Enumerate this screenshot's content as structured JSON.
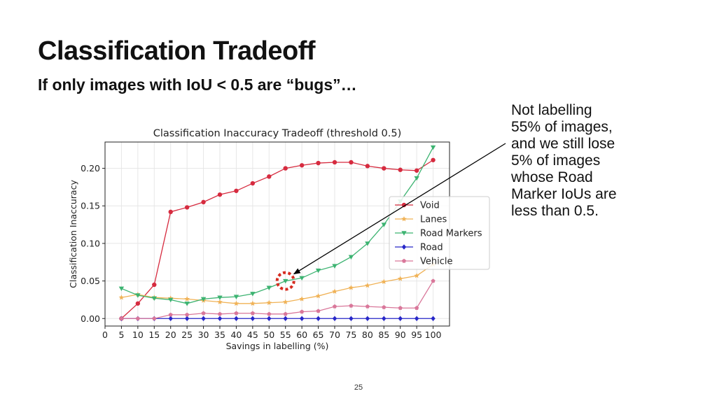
{
  "slide": {
    "title": "Classification Tradeoff",
    "subtitle": "If only images with IoU < 0.5 are “bugs”…",
    "annotation_lines": [
      "Not labelling",
      "55% of images,",
      "and we still lose",
      "5% of images",
      "whose Road",
      "Marker IoUs are",
      "less than 0.5."
    ],
    "page_number": "25"
  },
  "chart_data": {
    "type": "line",
    "title": "Classification Inaccuracy Tradeoff (threshold 0.5)",
    "xlabel": "Savings in labelling (%)",
    "ylabel": "Classification Inaccuracy",
    "xlim": [
      0,
      105
    ],
    "ylim": [
      -0.01,
      0.235
    ],
    "x_ticks": [
      0,
      5,
      10,
      15,
      20,
      25,
      30,
      35,
      40,
      45,
      50,
      55,
      60,
      65,
      70,
      75,
      80,
      85,
      90,
      95,
      100
    ],
    "x_tick_labels": [
      "0",
      "5",
      "10",
      "15",
      "20",
      "25",
      "30",
      "35",
      "40",
      "45",
      "50",
      "55",
      "60",
      "65",
      "70",
      "75",
      "80",
      "85",
      "90",
      "95",
      "100"
    ],
    "y_ticks": [
      0.0,
      0.05,
      0.1,
      0.15,
      0.2
    ],
    "y_tick_labels": [
      "0.00",
      "0.05",
      "0.10",
      "0.15",
      "0.20"
    ],
    "grid": true,
    "legend_position": "center-right",
    "x": [
      5,
      10,
      15,
      20,
      25,
      30,
      35,
      40,
      45,
      50,
      55,
      60,
      65,
      70,
      75,
      80,
      85,
      90,
      95,
      100
    ],
    "series": [
      {
        "name": "Void",
        "color": "#d62b3f",
        "marker": "circle",
        "values": [
          0.0,
          0.02,
          0.045,
          0.142,
          0.148,
          0.155,
          0.165,
          0.17,
          0.18,
          0.189,
          0.2,
          0.204,
          0.207,
          0.208,
          0.208,
          0.203,
          0.2,
          0.198,
          0.197,
          0.211
        ]
      },
      {
        "name": "Lanes",
        "color": "#f0b256",
        "marker": "star",
        "values": [
          0.028,
          0.032,
          0.028,
          0.027,
          0.026,
          0.024,
          0.022,
          0.02,
          0.02,
          0.021,
          0.022,
          0.026,
          0.03,
          0.036,
          0.041,
          0.044,
          0.049,
          0.053,
          0.057,
          0.072
        ]
      },
      {
        "name": "Road Markers",
        "color": "#3cb371",
        "marker": "triangle-down",
        "values": [
          0.04,
          0.031,
          0.027,
          0.025,
          0.02,
          0.026,
          0.028,
          0.029,
          0.033,
          0.041,
          0.05,
          0.054,
          0.064,
          0.07,
          0.082,
          0.1,
          0.125,
          0.156,
          0.187,
          0.228
        ]
      },
      {
        "name": "Road",
        "color": "#2727c8",
        "marker": "diamond",
        "values": [
          0.0,
          0.0,
          0.0,
          0.0,
          0.0,
          0.0,
          0.0,
          0.0,
          0.0,
          0.0,
          0.0,
          0.0,
          0.0,
          0.0,
          0.0,
          0.0,
          0.0,
          0.0,
          0.0,
          0.0
        ]
      },
      {
        "name": "Vehicle",
        "color": "#d9779a",
        "marker": "pentagon",
        "values": [
          0.0,
          0.0,
          0.0,
          0.005,
          0.005,
          0.007,
          0.006,
          0.007,
          0.007,
          0.006,
          0.006,
          0.009,
          0.01,
          0.016,
          0.017,
          0.016,
          0.015,
          0.014,
          0.014,
          0.05
        ]
      }
    ],
    "highlight": {
      "x": 55,
      "y": 0.05,
      "color": "#d62b1f"
    }
  }
}
